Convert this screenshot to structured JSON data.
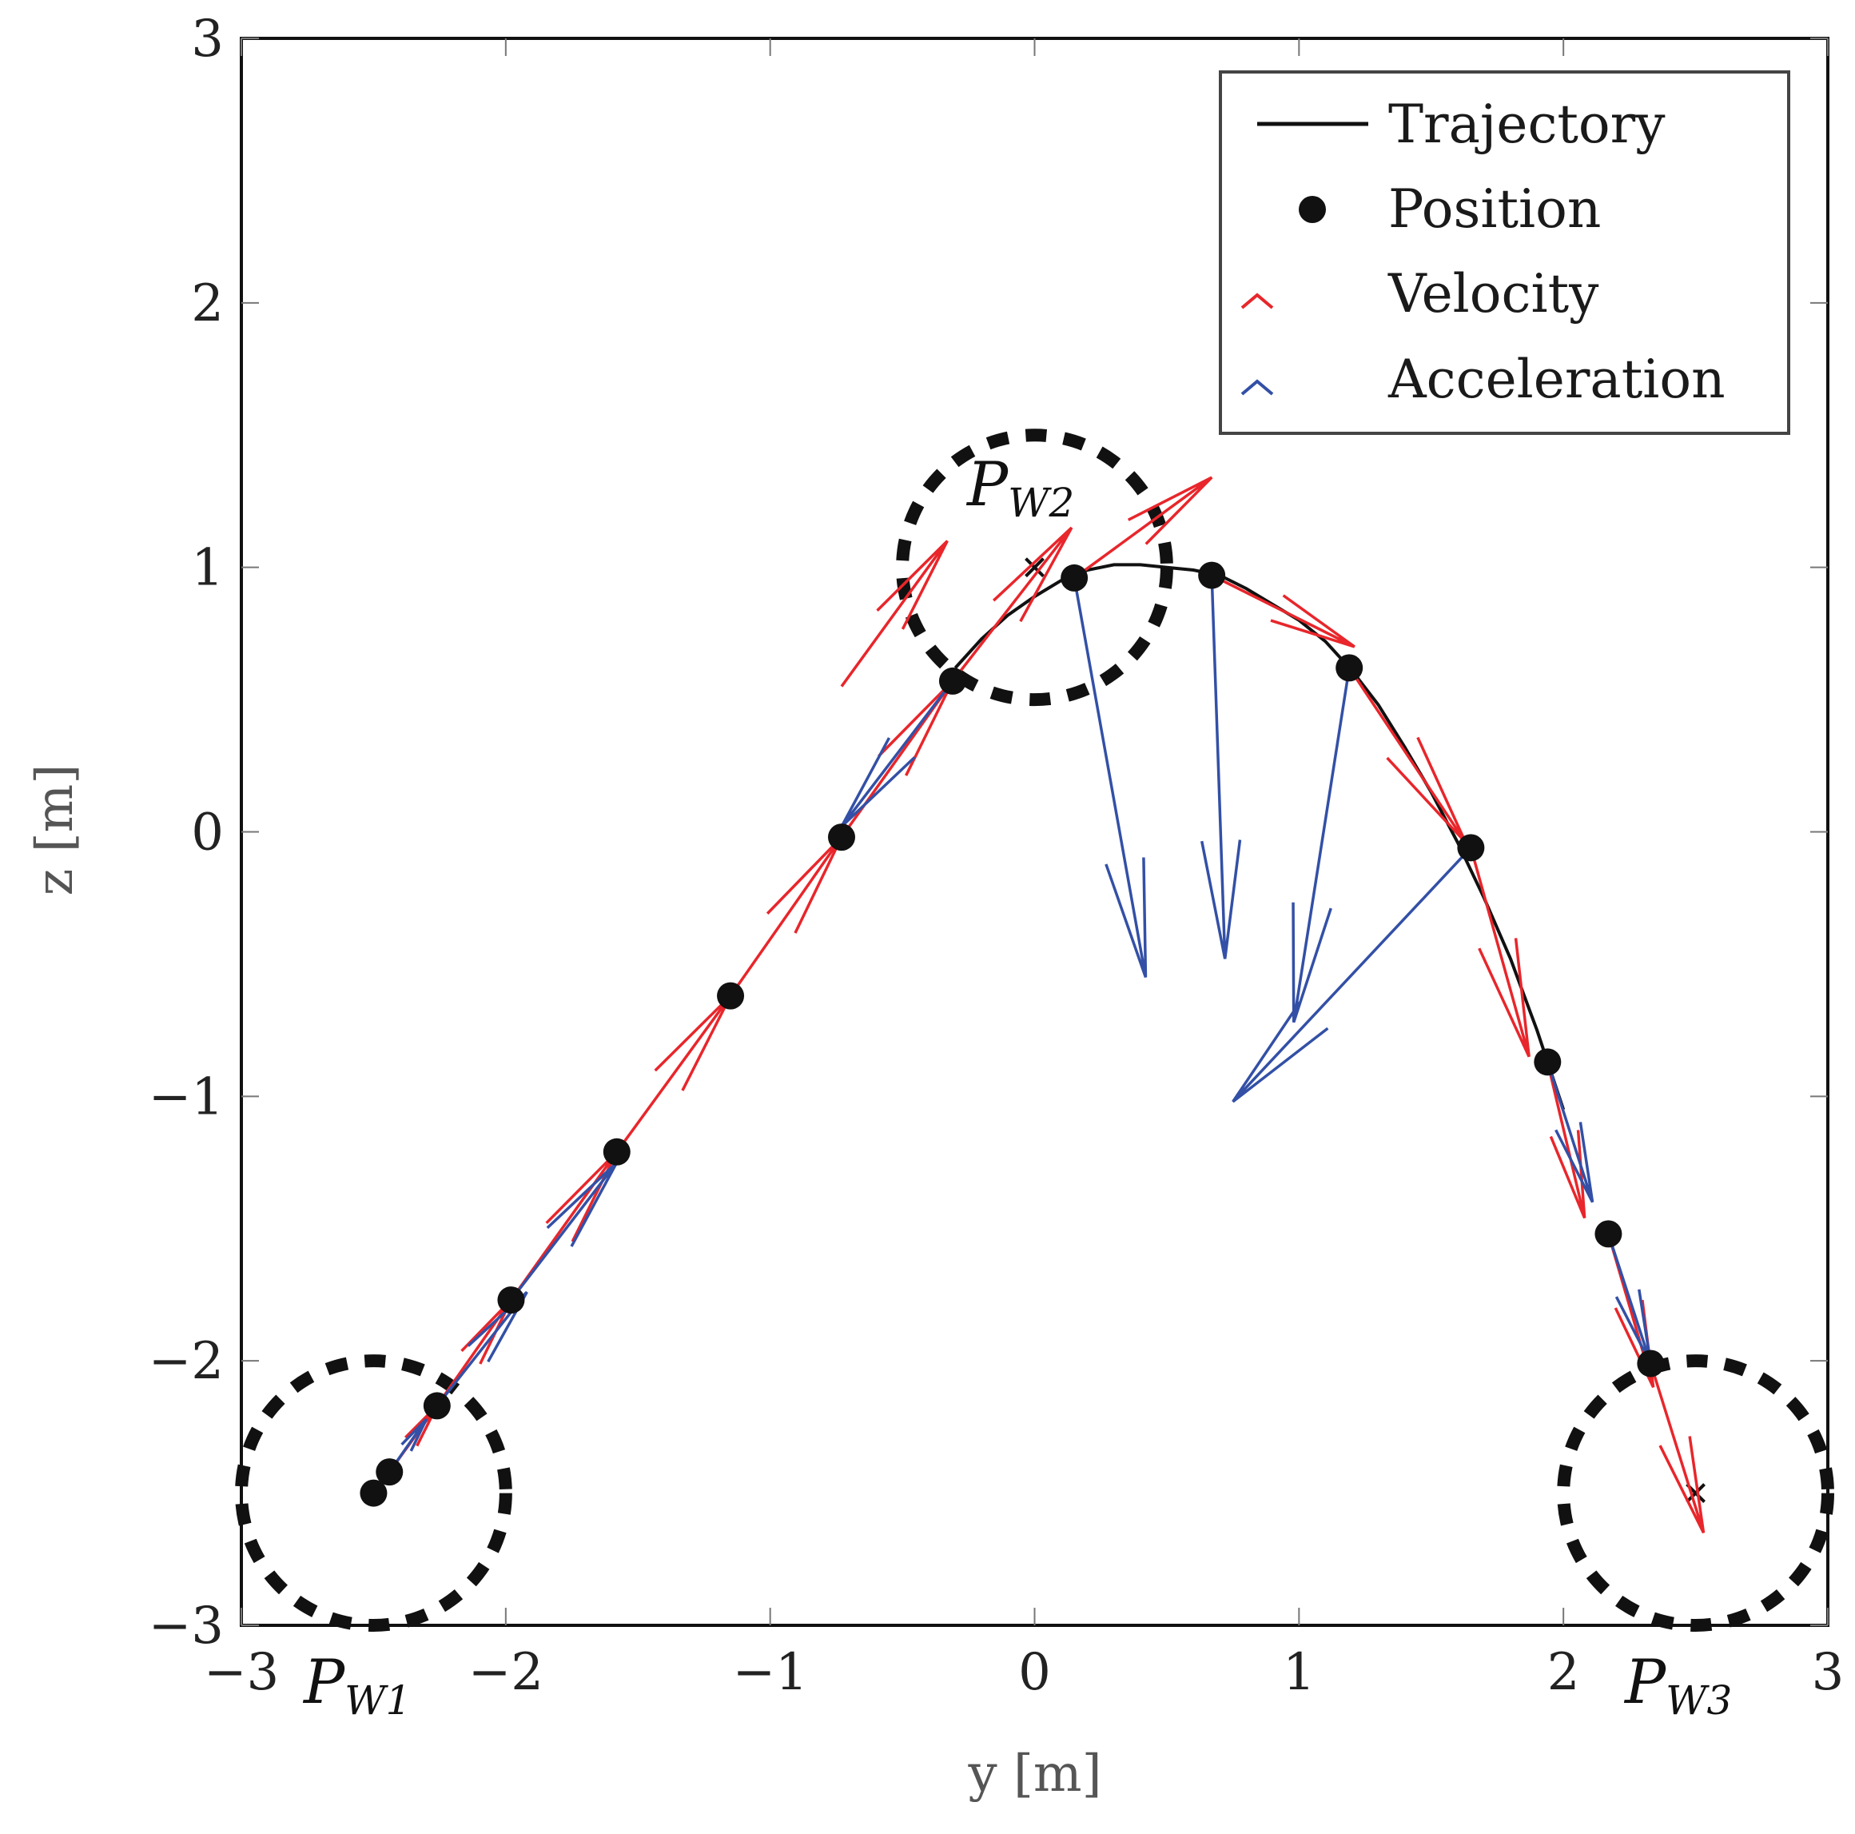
{
  "chart_data": {
    "type": "scatter",
    "title": "",
    "xlabel": "y [m]",
    "ylabel": "z [m]",
    "xlim": [
      -3,
      3
    ],
    "ylim": [
      -3,
      3
    ],
    "x_ticks": [
      -3,
      -2,
      -1,
      0,
      1,
      2,
      3
    ],
    "y_ticks": [
      -3,
      -2,
      -1,
      0,
      1,
      2,
      3
    ],
    "x_tick_labels": [
      "−3",
      "−2",
      "−1",
      "0",
      "1",
      "2",
      "3"
    ],
    "y_tick_labels": [
      "−3",
      "−2",
      "−1",
      "0",
      "1",
      "2",
      "3"
    ],
    "grid": false,
    "legend": {
      "placement": "top-right",
      "entries": [
        "Trajectory",
        "Position",
        "Velocity",
        "Acceleration"
      ]
    },
    "colors": {
      "trajectory": "#111111",
      "position": "#111111",
      "velocity": "#e8262b",
      "acceleration": "#3350a6",
      "waypoint": "#111111"
    },
    "trajectory": {
      "y": [
        -0.3,
        -0.2,
        -0.1,
        0.0,
        0.1,
        0.2,
        0.3,
        0.4,
        0.5,
        0.6,
        0.7,
        0.8,
        0.9,
        1.0,
        1.1,
        1.2,
        1.3,
        1.4,
        1.5,
        1.6,
        1.7,
        1.8,
        1.9,
        2.0
      ],
      "z": [
        0.62,
        0.73,
        0.82,
        0.89,
        0.95,
        0.99,
        1.01,
        1.01,
        1.0,
        0.99,
        0.97,
        0.92,
        0.86,
        0.8,
        0.72,
        0.61,
        0.48,
        0.32,
        0.15,
        -0.04,
        -0.25,
        -0.48,
        -0.75,
        -1.05
      ]
    },
    "positions": [
      {
        "y": -2.5,
        "z": -2.5
      },
      {
        "y": -2.44,
        "z": -2.42
      },
      {
        "y": -2.26,
        "z": -2.17
      },
      {
        "y": -1.98,
        "z": -1.77
      },
      {
        "y": -1.58,
        "z": -1.21
      },
      {
        "y": -1.15,
        "z": -0.62
      },
      {
        "y": -0.73,
        "z": -0.02
      },
      {
        "y": -0.31,
        "z": 0.57
      },
      {
        "y": 0.15,
        "z": 0.96
      },
      {
        "y": 0.67,
        "z": 0.97
      },
      {
        "y": 1.19,
        "z": 0.62
      },
      {
        "y": 1.65,
        "z": -0.06
      },
      {
        "y": 1.94,
        "z": -0.87
      },
      {
        "y": 2.17,
        "z": -1.52
      },
      {
        "y": 2.33,
        "z": -2.01
      }
    ],
    "velocity_vectors": [
      {
        "y": -2.44,
        "z": -2.42,
        "dy": 0.18,
        "dz": 0.25
      },
      {
        "y": -2.26,
        "z": -2.17,
        "dy": 0.28,
        "dz": 0.4
      },
      {
        "y": -1.98,
        "z": -1.77,
        "dy": 0.4,
        "dz": 0.56
      },
      {
        "y": -1.58,
        "z": -1.21,
        "dy": 0.43,
        "dz": 0.59
      },
      {
        "y": -1.15,
        "z": -0.62,
        "dy": 0.42,
        "dz": 0.6
      },
      {
        "y": -0.73,
        "z": -0.02,
        "dy": 0.42,
        "dz": 0.59
      },
      {
        "y": -0.31,
        "z": 0.57,
        "dy": 0.45,
        "dz": 0.58
      },
      {
        "y": 0.15,
        "z": 0.96,
        "dy": 0.52,
        "dz": 0.38
      },
      {
        "y": 0.67,
        "z": 0.97,
        "dy": 0.54,
        "dz": -0.27
      },
      {
        "y": 1.19,
        "z": 0.62,
        "dy": 0.44,
        "dz": -0.66
      },
      {
        "y": 1.65,
        "z": -0.06,
        "dy": 0.22,
        "dz": -0.79
      },
      {
        "y": 1.94,
        "z": -0.87,
        "dy": 0.14,
        "dz": -0.59
      },
      {
        "y": 2.17,
        "z": -1.52,
        "dy": 0.17,
        "dz": -0.58
      },
      {
        "y": 2.33,
        "z": -2.01,
        "dy": 0.2,
        "dz": -0.64
      },
      {
        "y": -0.73,
        "z": 0.55,
        "dy": 0.4,
        "dz": 0.55
      }
    ],
    "acceleration_vectors": [
      {
        "y": -2.44,
        "z": -2.42,
        "dy": 0.14,
        "dz": 0.2
      },
      {
        "y": -2.26,
        "z": -2.17,
        "dy": 0.34,
        "dz": 0.43
      },
      {
        "y": -1.98,
        "z": -1.77,
        "dy": 0.4,
        "dz": 0.52
      },
      {
        "y": -0.31,
        "z": 0.57,
        "dy": -0.42,
        "dz": -0.55
      },
      {
        "y": 0.15,
        "z": 0.96,
        "dy": 0.27,
        "dz": -1.51
      },
      {
        "y": 0.67,
        "z": 0.97,
        "dy": 0.05,
        "dz": -1.45
      },
      {
        "y": 1.19,
        "z": 0.62,
        "dy": -0.21,
        "dz": -1.34
      },
      {
        "y": 1.65,
        "z": -0.06,
        "dy": -0.9,
        "dz": -0.96
      },
      {
        "y": 1.94,
        "z": -0.87,
        "dy": 0.17,
        "dz": -0.53
      },
      {
        "y": 2.17,
        "z": -1.52,
        "dy": 0.16,
        "dz": -0.49
      }
    ],
    "waypoints": [
      {
        "name": "P",
        "sub": "W1",
        "y": -2.5,
        "z": -2.5,
        "radius": 0.5,
        "marker": false
      },
      {
        "name": "P",
        "sub": "W2",
        "y": 0.0,
        "z": 1.0,
        "radius": 0.5,
        "marker": true
      },
      {
        "name": "P",
        "sub": "W3",
        "y": 2.5,
        "z": -2.5,
        "radius": 0.5,
        "marker": true
      }
    ]
  }
}
